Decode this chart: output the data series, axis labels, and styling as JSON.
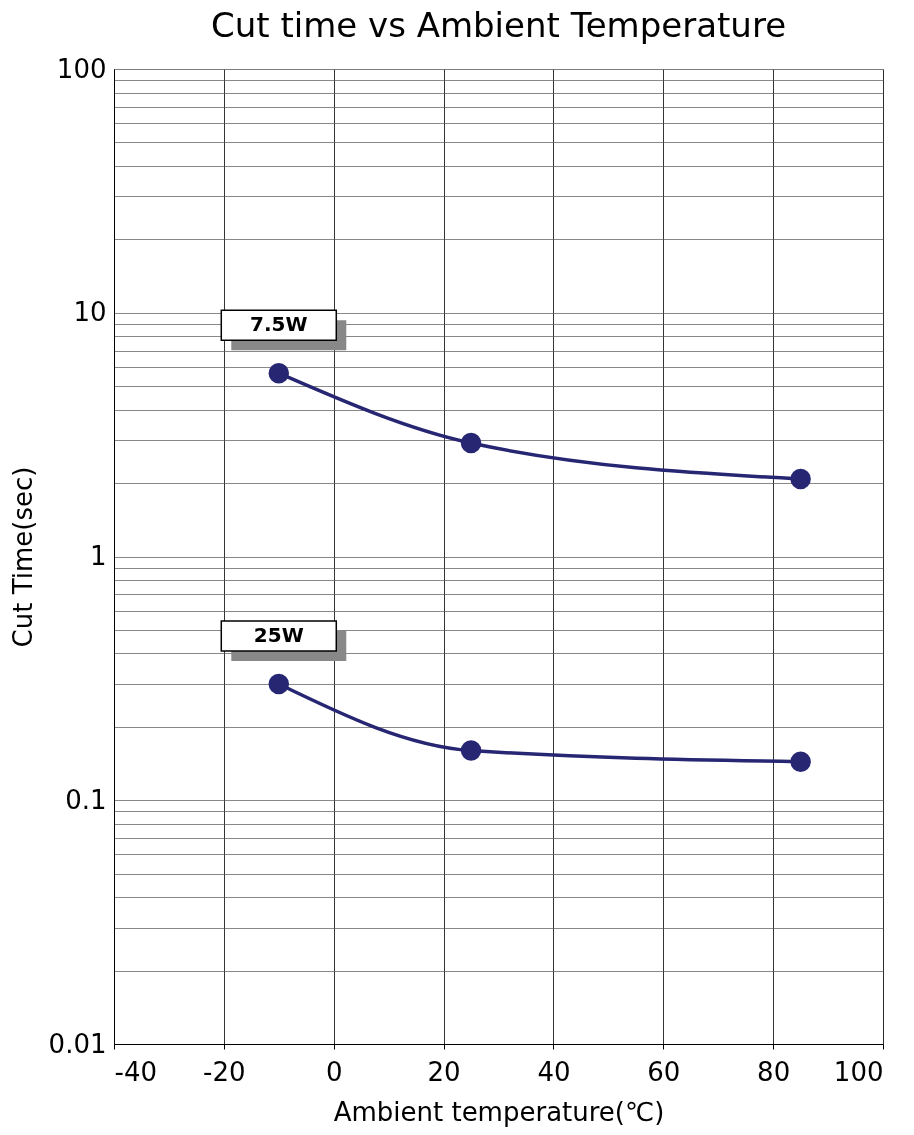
{
  "chart_data": {
    "type": "line",
    "title": "Cut time vs Ambient Temperature",
    "xlabel": "Ambient temperature(℃)",
    "ylabel": "Cut Time(sec)",
    "series": [
      {
        "name": "7.5W",
        "color": "#262673",
        "x": [
          -10,
          25,
          85
        ],
        "values": [
          5.65,
          2.92,
          2.08
        ]
      },
      {
        "name": "25W",
        "color": "#262673",
        "x": [
          -10,
          25,
          85
        ],
        "values": [
          0.3,
          0.16,
          0.144
        ]
      }
    ],
    "xlim": [
      -40,
      100
    ],
    "xticks": [
      -40,
      -20,
      0,
      20,
      40,
      60,
      80,
      100
    ],
    "ylim": [
      0.01,
      100
    ],
    "yticks": [
      0.01,
      {
        "value": 0.02,
        "label": null
      },
      {
        "value": 0.03,
        "label": null
      },
      {
        "value": 0.04,
        "label": null
      },
      {
        "value": 0.05,
        "label": null
      },
      {
        "value": 0.06,
        "label": null
      },
      {
        "value": 0.07,
        "label": null
      },
      {
        "value": 0.08,
        "label": null
      },
      {
        "value": 0.09,
        "label": null
      },
      0.1,
      {
        "value": 0.2,
        "label": null
      },
      {
        "value": 0.3,
        "label": null
      },
      {
        "value": 0.4,
        "label": null
      },
      {
        "value": 0.5,
        "label": null
      },
      {
        "value": 0.6,
        "label": null
      },
      {
        "value": 0.7,
        "label": null
      },
      {
        "value": 0.8,
        "label": null
      },
      {
        "value": 0.9,
        "label": null
      },
      1,
      {
        "value": 2,
        "label": null
      },
      {
        "value": 3,
        "label": null
      },
      {
        "value": 4,
        "label": null
      },
      {
        "value": 5,
        "label": null
      },
      {
        "value": 6,
        "label": null
      },
      {
        "value": 7,
        "label": null
      },
      {
        "value": 8,
        "label": null
      },
      {
        "value": 9,
        "label": null
      },
      10,
      {
        "value": 20,
        "label": null
      },
      {
        "value": 30,
        "label": null
      },
      {
        "value": 40,
        "label": null
      },
      {
        "value": 50,
        "label": null
      },
      {
        "value": 60,
        "label": null
      },
      {
        "value": 70,
        "label": null
      },
      {
        "value": 80,
        "label": null
      },
      {
        "value": 90,
        "label": null
      },
      100
    ],
    "log": "y",
    "grid": true,
    "legend": false,
    "marker": "circle",
    "line_style": "solid"
  }
}
